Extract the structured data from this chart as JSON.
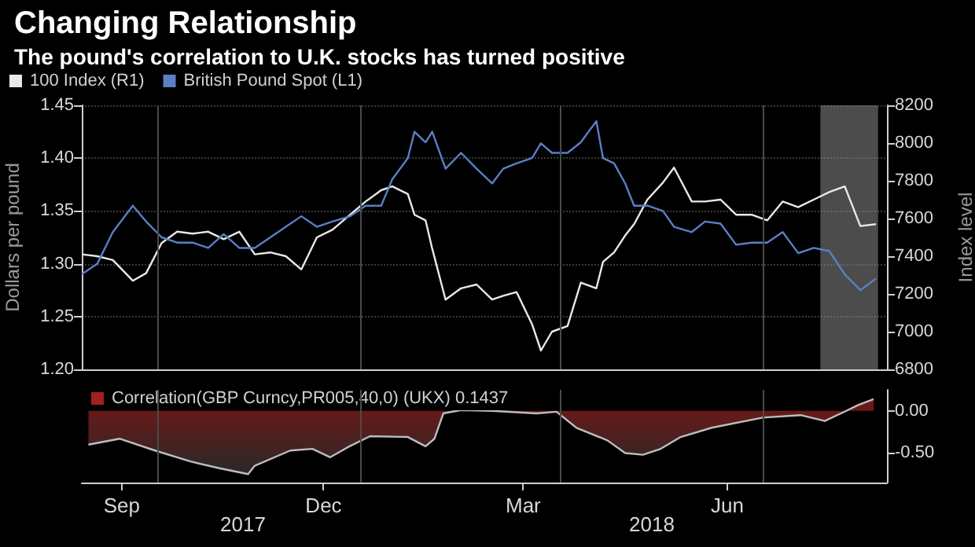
{
  "chart_data": [
    {
      "type": "line",
      "title": "Changing Relationship",
      "subtitle": "The pound's correlation to U.K. stocks has turned positive",
      "ylabel": "Dollars per pound",
      "y2label": "Index level",
      "x": [
        "2017-08-28",
        "2017-09-04",
        "2017-09-11",
        "2017-09-20",
        "2017-09-26",
        "2017-10-03",
        "2017-10-10",
        "2017-10-17",
        "2017-10-24",
        "2017-10-31",
        "2017-11-07",
        "2017-11-14",
        "2017-11-21",
        "2017-11-28",
        "2017-12-05",
        "2017-12-12",
        "2017-12-19",
        "2017-12-27",
        "2018-01-03",
        "2018-01-10",
        "2018-01-15",
        "2018-01-22",
        "2018-01-25",
        "2018-01-30",
        "2018-02-02",
        "2018-02-08",
        "2018-02-15",
        "2018-02-22",
        "2018-03-01",
        "2018-03-06",
        "2018-03-12",
        "2018-03-19",
        "2018-03-23",
        "2018-03-28",
        "2018-04-04",
        "2018-04-10",
        "2018-04-17",
        "2018-04-20",
        "2018-04-25",
        "2018-04-30",
        "2018-05-04",
        "2018-05-10",
        "2018-05-17",
        "2018-05-22",
        "2018-05-30",
        "2018-06-05",
        "2018-06-12",
        "2018-06-19",
        "2018-06-26",
        "2018-07-03",
        "2018-07-10",
        "2018-07-17",
        "2018-07-24",
        "2018-07-31",
        "2018-08-07",
        "2018-08-14",
        "2018-08-21"
      ],
      "series": [
        {
          "name": "100 Index (R1)",
          "color": "#e8e8e8",
          "axis": "y2",
          "values": [
            7410,
            7400,
            7380,
            7270,
            7310,
            7470,
            7530,
            7520,
            7530,
            7490,
            7530,
            7410,
            7420,
            7400,
            7330,
            7500,
            7540,
            7620,
            7690,
            7750,
            7770,
            7730,
            7620,
            7590,
            7440,
            7170,
            7230,
            7250,
            7170,
            7190,
            7210,
            7040,
            6900,
            7000,
            7030,
            7260,
            7230,
            7370,
            7420,
            7510,
            7570,
            7700,
            7790,
            7870,
            7690,
            7690,
            7700,
            7620,
            7620,
            7590,
            7690,
            7660,
            7700,
            7740,
            7770,
            7560,
            7570
          ]
        },
        {
          "name": "British Pound Spot (L1)",
          "color": "#5a7fc4",
          "values": [
            1.29,
            1.3,
            1.33,
            1.355,
            1.34,
            1.325,
            1.32,
            1.32,
            1.315,
            1.328,
            1.315,
            1.315,
            1.325,
            1.335,
            1.345,
            1.335,
            1.34,
            1.345,
            1.355,
            1.355,
            1.38,
            1.4,
            1.425,
            1.415,
            1.425,
            1.39,
            1.405,
            1.39,
            1.376,
            1.39,
            1.395,
            1.4,
            1.414,
            1.405,
            1.405,
            1.415,
            1.435,
            1.4,
            1.395,
            1.376,
            1.355,
            1.355,
            1.35,
            1.335,
            1.33,
            1.34,
            1.338,
            1.318,
            1.32,
            1.32,
            1.33,
            1.31,
            1.315,
            1.312,
            1.29,
            1.275,
            1.286
          ]
        }
      ],
      "xlim": [
        "2017-08-28",
        "2018-08-26"
      ],
      "xticks": [
        {
          "value": "2017-10-01",
          "label": null
        },
        {
          "value": "2018-01-01",
          "label": null
        },
        {
          "value": "2018-04-01",
          "label": null
        },
        {
          "value": "2018-07-01",
          "label": null
        }
      ],
      "ylim": [
        1.2,
        1.45
      ],
      "yticks": [
        {
          "value": 1.2,
          "label": "1.20"
        },
        {
          "value": 1.25,
          "label": "1.25"
        },
        {
          "value": 1.3,
          "label": "1.30"
        },
        {
          "value": 1.35,
          "label": "1.35"
        },
        {
          "value": 1.4,
          "label": "1.40"
        },
        {
          "value": 1.45,
          "label": "1.45"
        }
      ],
      "y2lim": [
        6800,
        8200
      ],
      "y2ticks": [
        6800,
        7000,
        7200,
        7400,
        7600,
        7800,
        8000,
        8200
      ],
      "bands": [
        {
          "axis": "x",
          "from": "2018-07-27",
          "to": "2018-08-22",
          "color": "#8a8a8a"
        }
      ],
      "tick_labels": "y",
      "grid": true,
      "legend": "top left"
    },
    {
      "type": "area",
      "annotations": [
        "2017",
        "2018"
      ],
      "series": [
        {
          "name": "Correlation(GBP Curncy,PR005,40,0) (UKX) 0.1437",
          "color": "#a32020",
          "axis": "y2",
          "x": [
            "2017-08-31",
            "2017-09-14",
            "2017-09-30",
            "2017-10-16",
            "2017-10-29",
            "2017-11-11",
            "2017-11-14",
            "2017-11-30",
            "2017-12-10",
            "2017-12-18",
            "2017-12-26",
            "2018-01-05",
            "2018-01-22",
            "2018-01-30",
            "2018-02-03",
            "2018-02-07",
            "2018-02-15",
            "2018-03-01",
            "2018-03-21",
            "2018-03-30",
            "2018-04-08",
            "2018-04-22",
            "2018-04-30",
            "2018-05-08",
            "2018-05-16",
            "2018-05-25",
            "2018-06-08",
            "2018-07-01",
            "2018-07-18",
            "2018-07-29",
            "2018-08-06",
            "2018-08-13",
            "2018-08-20"
          ],
          "values": [
            -0.4,
            -0.33,
            -0.47,
            -0.6,
            -0.68,
            -0.75,
            -0.65,
            -0.47,
            -0.45,
            -0.55,
            -0.43,
            -0.3,
            -0.31,
            -0.42,
            -0.33,
            -0.03,
            0.01,
            0,
            -0.03,
            -0.01,
            -0.2,
            -0.35,
            -0.5,
            -0.52,
            -0.45,
            -0.31,
            -0.2,
            -0.08,
            -0.05,
            -0.12,
            -0.02,
            0.07,
            0.14
          ]
        }
      ],
      "xlim": [
        "2017-08-28",
        "2018-08-26"
      ],
      "xticks": [
        {
          "value": "2017-09-15",
          "label": "Sep"
        },
        {
          "value": "2017-10-01",
          "label": null
        },
        {
          "value": "2017-12-15",
          "label": "Dec"
        },
        {
          "value": "2018-01-01",
          "label": null
        },
        {
          "value": "2018-03-15",
          "label": "Mar"
        },
        {
          "value": "2018-04-01",
          "label": null
        },
        {
          "value": "2018-06-15",
          "label": "Jun"
        },
        {
          "value": "2018-07-01",
          "label": null
        }
      ],
      "y2lim": [
        -0.85,
        0.25
      ],
      "y2ticks": [
        {
          "value": -0.5,
          "label": "-0.50"
        },
        {
          "value": 0,
          "label": "0.00"
        }
      ],
      "grid": "x",
      "legend": "top left"
    }
  ]
}
